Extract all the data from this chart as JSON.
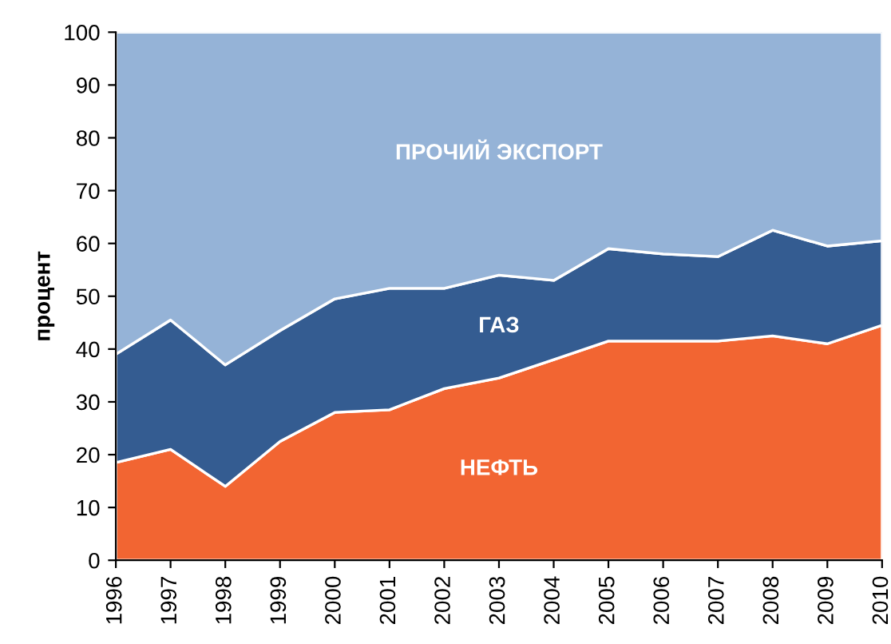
{
  "chart_data": {
    "type": "area",
    "stacked": true,
    "ylabel": "процент",
    "x": [
      1996,
      1997,
      1998,
      1999,
      2000,
      2001,
      2002,
      2003,
      2004,
      2005,
      2006,
      2007,
      2008,
      2009,
      2010
    ],
    "series": [
      {
        "name": "НЕФТЬ",
        "color": "#f26532",
        "values": [
          18.5,
          21,
          14,
          22.5,
          28,
          28.5,
          32.5,
          34.5,
          38,
          41.5,
          41.5,
          41.5,
          42.5,
          41,
          44.5
        ]
      },
      {
        "name": "ГАЗ",
        "color": "#345c91",
        "values": [
          20.5,
          24.5,
          23,
          21,
          21.5,
          23,
          19,
          19.5,
          15,
          17.5,
          16.5,
          16,
          20,
          18.5,
          16
        ]
      },
      {
        "name": "ПРОЧИЙ ЭКСПОРТ",
        "color": "#95b3d7",
        "values": [
          61,
          54.5,
          63,
          56.5,
          50.5,
          48.5,
          48.5,
          46,
          47,
          41,
          42,
          42.5,
          37.5,
          40.5,
          39.5
        ]
      }
    ],
    "xlim": [
      1996,
      2010
    ],
    "xticks": [
      1996,
      1997,
      1998,
      1999,
      2000,
      2001,
      2002,
      2003,
      2004,
      2005,
      2006,
      2007,
      2008,
      2009,
      2010
    ],
    "ylim": [
      0,
      100
    ],
    "yticks": [
      0,
      10,
      20,
      30,
      40,
      50,
      60,
      70,
      80,
      90,
      100
    ],
    "grid": false
  }
}
